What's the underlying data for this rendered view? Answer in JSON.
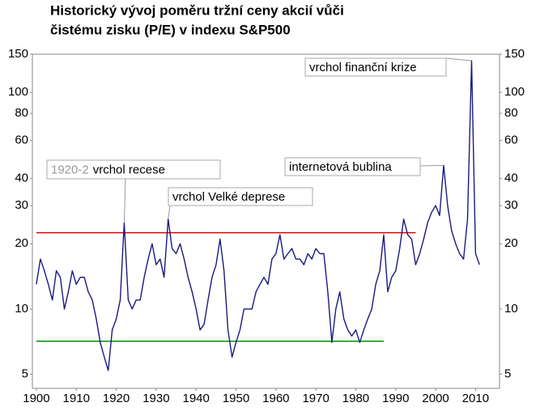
{
  "chart_data": {
    "type": "line",
    "title": [
      "Historický vývoj poměru tržní ceny akcií vůči",
      "čistému zisku (P/E) v indexu S&P500"
    ],
    "x": [
      1900,
      1901,
      1902,
      1903,
      1904,
      1905,
      1906,
      1907,
      1908,
      1909,
      1910,
      1911,
      1912,
      1913,
      1914,
      1915,
      1916,
      1917,
      1918,
      1919,
      1920,
      1921,
      1922,
      1923,
      1924,
      1925,
      1926,
      1927,
      1928,
      1929,
      1930,
      1931,
      1932,
      1933,
      1934,
      1935,
      1936,
      1937,
      1938,
      1939,
      1940,
      1941,
      1942,
      1943,
      1944,
      1945,
      1946,
      1947,
      1948,
      1949,
      1950,
      1951,
      1952,
      1953,
      1954,
      1955,
      1956,
      1957,
      1958,
      1959,
      1960,
      1961,
      1962,
      1963,
      1964,
      1965,
      1966,
      1967,
      1968,
      1969,
      1970,
      1971,
      1972,
      1973,
      1974,
      1975,
      1976,
      1977,
      1978,
      1979,
      1980,
      1981,
      1982,
      1983,
      1984,
      1985,
      1986,
      1987,
      1988,
      1989,
      1990,
      1991,
      1992,
      1993,
      1994,
      1995,
      1996,
      1997,
      1998,
      1999,
      2000,
      2001,
      2002,
      2003,
      2004,
      2005,
      2006,
      2007,
      2008,
      2009,
      2010,
      2011
    ],
    "series": [
      {
        "color": "#1a1a80",
        "values": [
          13,
          17,
          15,
          13,
          11,
          15,
          14,
          10,
          12,
          15,
          13,
          14,
          14,
          12,
          11,
          9,
          7,
          6,
          5.2,
          8,
          9,
          11,
          25,
          11,
          10,
          11,
          11,
          14,
          17,
          20,
          16,
          17,
          14,
          26,
          19,
          18,
          20,
          17,
          14,
          12,
          10,
          8,
          8.5,
          11,
          14,
          16,
          21,
          15,
          8,
          6,
          7,
          8,
          10,
          10,
          10,
          12,
          13,
          14,
          13,
          17,
          18,
          22,
          17,
          18,
          19,
          17,
          17,
          16,
          18,
          17,
          19,
          18,
          18,
          12,
          7,
          10,
          12,
          9,
          8,
          7.5,
          8,
          7,
          8,
          9,
          10,
          13,
          15,
          22,
          12,
          14,
          15,
          19,
          26,
          22,
          21,
          16,
          18,
          21,
          25,
          28,
          30,
          27,
          46,
          30,
          23,
          20,
          18,
          17,
          26,
          140,
          18,
          16
        ]
      }
    ],
    "reference_lines": [
      {
        "value": 22.5,
        "x": [
          1900,
          1995
        ],
        "color": "#e00000"
      },
      {
        "value": 7.1,
        "x": [
          1900,
          1987
        ],
        "color": "#009000"
      }
    ],
    "annotations": [
      {
        "text": "vrchol finanční krize",
        "x": 2009,
        "y": 140
      },
      {
        "text": "internetová bublina",
        "x": 2002,
        "y": 46
      },
      {
        "text": "vrchol Velké deprese",
        "x": 1933,
        "y": 26
      },
      {
        "prefix": "1920-2",
        "text": "vrchol recese",
        "x": 1922,
        "y": 25
      }
    ],
    "xlim": [
      1899,
      2016
    ],
    "xticks": [
      1900,
      1910,
      1920,
      1930,
      1940,
      1950,
      1960,
      1970,
      1980,
      1990,
      2000,
      2010
    ],
    "ylim": [
      4.3,
      150
    ],
    "yticks": [
      5,
      10,
      20,
      30,
      40,
      60,
      80,
      100,
      150
    ],
    "log_scale_y": true
  }
}
